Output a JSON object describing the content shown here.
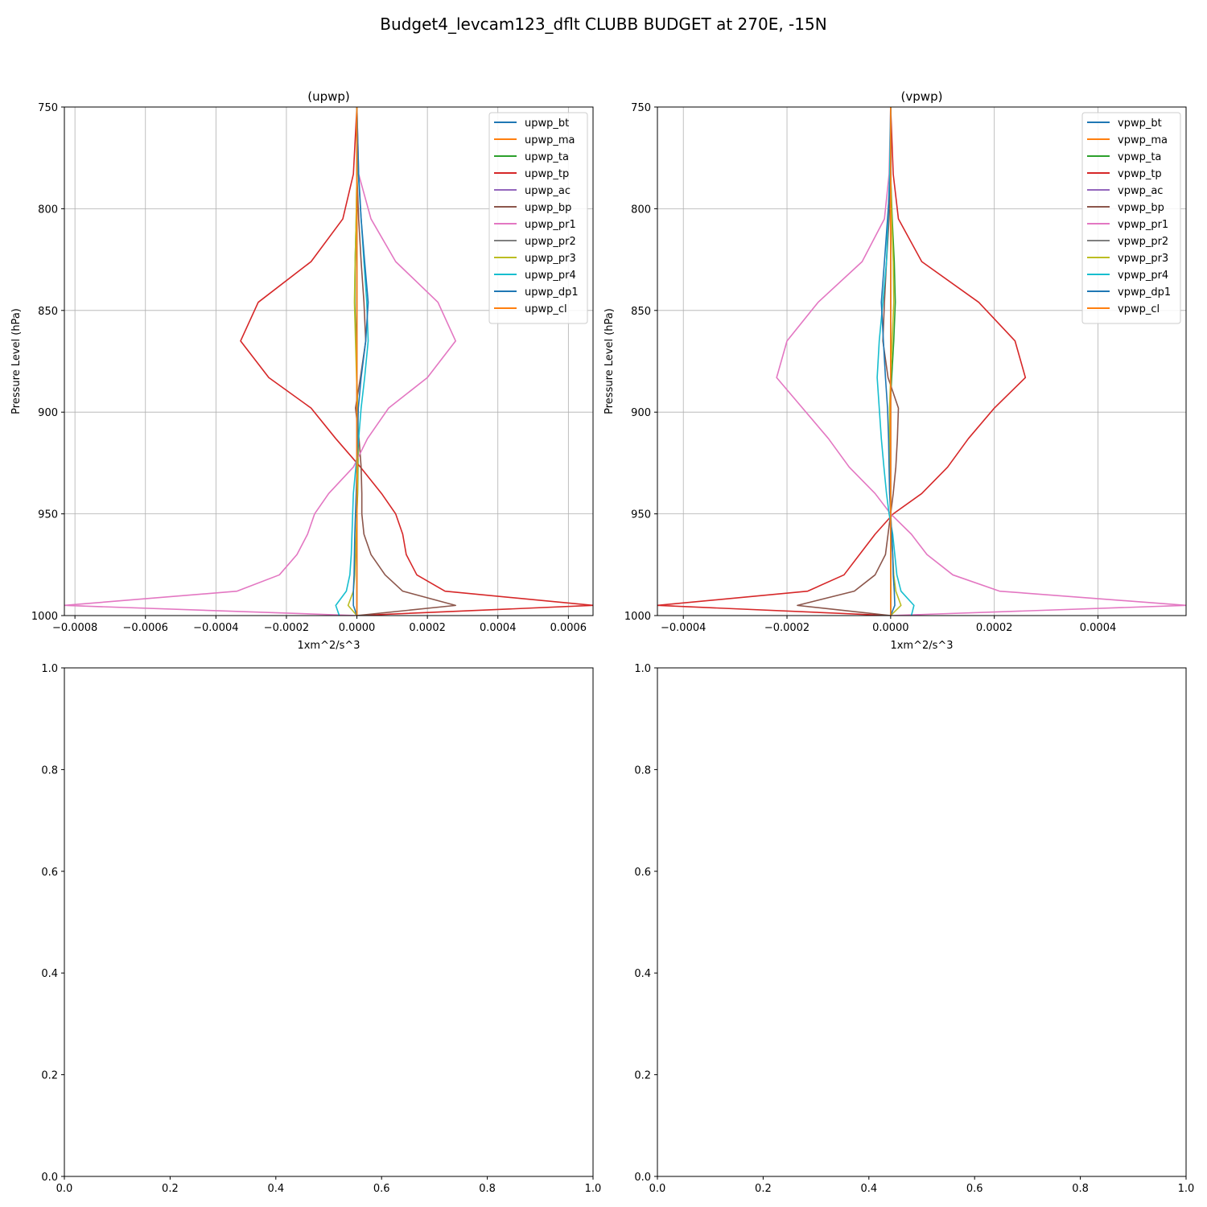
{
  "figure": {
    "suptitle": "Budget4_levcam123_dflt CLUBB BUDGET at 270E, -15N"
  },
  "chart_data": [
    {
      "type": "line",
      "title": "(upwp)",
      "xlabel": "1xm^2/s^3",
      "ylabel": "Pressure Level (hPa)",
      "xlim": [
        -0.00083,
        0.00067
      ],
      "ylim": [
        1000,
        750
      ],
      "y_inverted": true,
      "xticks": [
        -0.0008,
        -0.0006,
        -0.0004,
        -0.0002,
        0.0,
        0.0002,
        0.0004,
        0.0006
      ],
      "xtick_labels": [
        "−0.0008",
        "−0.0006",
        "−0.0004",
        "−0.0002",
        "0.0000",
        "0.0002",
        "0.0004",
        "0.0006"
      ],
      "yticks": [
        750,
        800,
        850,
        900,
        950,
        1000
      ],
      "ytick_labels": [
        "750",
        "800",
        "850",
        "900",
        "950",
        "1000"
      ],
      "grid": true,
      "legend_position": "upper right",
      "levels": [
        750,
        783,
        805,
        826,
        846,
        865,
        883,
        898,
        913,
        927,
        940,
        950,
        960,
        970,
        980,
        988,
        995,
        1000
      ],
      "series": [
        {
          "name": "upwp_bt",
          "color": "#1f77b4",
          "x": [
            0.0,
            0.0,
            0.0,
            0.0,
            0.0,
            0.0,
            0.0,
            0.0,
            0.0,
            0.0,
            0.0,
            0.0,
            0.0,
            0.0,
            0.0,
            0.0,
            0.0,
            0.0
          ]
        },
        {
          "name": "upwp_ma",
          "color": "#ff7f0e",
          "x": [
            0.0,
            0.0,
            0.0,
            0.0,
            0.0,
            0.0,
            0.0,
            0.0,
            0.0,
            0.0,
            0.0,
            0.0,
            0.0,
            0.0,
            0.0,
            0.0,
            0.0,
            0.0
          ]
        },
        {
          "name": "upwp_ta",
          "color": "#2ca02c",
          "x": [
            0.0,
            0.0,
            -2e-06,
            -5e-06,
            -6e-06,
            -3e-06,
            0.0,
            2e-06,
            4e-06,
            3e-06,
            2e-06,
            0.0,
            0.0,
            0.0,
            0.0,
            0.0,
            0.0,
            0.0
          ]
        },
        {
          "name": "upwp_tp",
          "color": "#d62728",
          "x": [
            0.0,
            -1e-05,
            -4e-05,
            -0.00013,
            -0.00028,
            -0.00033,
            -0.00025,
            -0.00013,
            -6e-05,
            1e-05,
            7e-05,
            0.00011,
            0.00013,
            0.00014,
            0.00017,
            0.00025,
            0.00067,
            0.0
          ]
        },
        {
          "name": "upwp_ac",
          "color": "#9467bd",
          "x": [
            0.0,
            0.0,
            0.0,
            0.0,
            0.0,
            0.0,
            0.0,
            0.0,
            0.0,
            0.0,
            0.0,
            0.0,
            0.0,
            0.0,
            0.0,
            0.0,
            0.0,
            0.0
          ]
        },
        {
          "name": "upwp_bp",
          "color": "#8c564b",
          "x": [
            0.0,
            0.0,
            5e-06,
            1.2e-05,
            2e-05,
            2.5e-05,
            1e-05,
            -4e-06,
            6e-06,
            1.2e-05,
            1.4e-05,
            1.4e-05,
            2e-05,
            4e-05,
            8e-05,
            0.00013,
            0.00028,
            0.0
          ]
        },
        {
          "name": "upwp_pr1",
          "color": "#e377c2",
          "x": [
            0.0,
            5e-06,
            4e-05,
            0.00011,
            0.00023,
            0.00028,
            0.0002,
            9e-05,
            3e-05,
            -1e-05,
            -8e-05,
            -0.00012,
            -0.00014,
            -0.00017,
            -0.00022,
            -0.00034,
            -0.00083,
            0.0
          ]
        },
        {
          "name": "upwp_pr2",
          "color": "#7f7f7f",
          "x": [
            0.0,
            0.0,
            0.0,
            0.0,
            0.0,
            0.0,
            0.0,
            0.0,
            0.0,
            0.0,
            0.0,
            0.0,
            0.0,
            0.0,
            0.0,
            0.0,
            0.0,
            0.0
          ]
        },
        {
          "name": "upwp_pr3",
          "color": "#bcbd22",
          "x": [
            0.0,
            0.0,
            -2e-06,
            -5e-06,
            -7e-06,
            -4e-06,
            -1e-06,
            2e-06,
            3e-06,
            2e-06,
            1e-06,
            0.0,
            -2e-06,
            -4e-06,
            -6e-06,
            -1e-05,
            -2.5e-05,
            0.0
          ]
        },
        {
          "name": "upwp_pr4",
          "color": "#17becf",
          "x": [
            0.0,
            4e-06,
            1.2e-05,
            2e-05,
            2.8e-05,
            3.2e-05,
            2.2e-05,
            1.2e-05,
            5e-06,
            -3e-06,
            -1e-05,
            -1.2e-05,
            -1.4e-05,
            -1.6e-05,
            -2e-05,
            -3e-05,
            -6e-05,
            -5e-05
          ]
        },
        {
          "name": "upwp_dp1",
          "color": "#1f77b4",
          "x": [
            0.0,
            5e-06,
            1.2e-05,
            2.2e-05,
            3.2e-05,
            2.5e-05,
            1.2e-05,
            4e-06,
            2e-06,
            0.0,
            -2e-06,
            -4e-06,
            -6e-06,
            -7e-06,
            -8e-06,
            -1e-05,
            -1e-05,
            0.0
          ]
        },
        {
          "name": "upwp_cl",
          "color": "#ff7f0e",
          "x": [
            0.0,
            0.0,
            0.0,
            0.0,
            0.0,
            0.0,
            0.0,
            0.0,
            0.0,
            0.0,
            0.0,
            0.0,
            0.0,
            0.0,
            0.0,
            0.0,
            0.0,
            0.0
          ]
        }
      ]
    },
    {
      "type": "line",
      "title": "(vpwp)",
      "xlabel": "1xm^2/s^3",
      "ylabel": "Pressure Level (hPa)",
      "xlim": [
        -0.00045,
        0.00057
      ],
      "ylim": [
        1000,
        750
      ],
      "y_inverted": true,
      "xticks": [
        -0.0004,
        -0.0002,
        0.0,
        0.0002,
        0.0004
      ],
      "xtick_labels": [
        "−0.0004",
        "−0.0002",
        "0.0000",
        "0.0002",
        "0.0004"
      ],
      "yticks": [
        750,
        800,
        850,
        900,
        950,
        1000
      ],
      "ytick_labels": [
        "750",
        "800",
        "850",
        "900",
        "950",
        "1000"
      ],
      "grid": true,
      "legend_position": "upper right",
      "levels": [
        750,
        783,
        805,
        826,
        846,
        865,
        883,
        898,
        913,
        927,
        940,
        950,
        960,
        970,
        980,
        988,
        995,
        1000
      ],
      "series": [
        {
          "name": "vpwp_bt",
          "color": "#1f77b4",
          "x": [
            0.0,
            0.0,
            0.0,
            0.0,
            0.0,
            0.0,
            0.0,
            0.0,
            0.0,
            0.0,
            0.0,
            0.0,
            0.0,
            0.0,
            0.0,
            0.0,
            0.0,
            0.0
          ]
        },
        {
          "name": "vpwp_ma",
          "color": "#ff7f0e",
          "x": [
            0.0,
            0.0,
            0.0,
            0.0,
            0.0,
            0.0,
            0.0,
            0.0,
            0.0,
            0.0,
            0.0,
            0.0,
            0.0,
            0.0,
            0.0,
            0.0,
            0.0,
            0.0
          ]
        },
        {
          "name": "vpwp_ta",
          "color": "#2ca02c",
          "x": [
            0.0,
            0.0,
            3e-06,
            7e-06,
            9e-06,
            6e-06,
            2e-06,
            -1e-06,
            -2e-06,
            -2e-06,
            -1e-06,
            0.0,
            0.0,
            0.0,
            0.0,
            0.0,
            0.0,
            0.0
          ]
        },
        {
          "name": "vpwp_tp",
          "color": "#d62728",
          "x": [
            0.0,
            5e-06,
            1.5e-05,
            6e-05,
            0.00017,
            0.00024,
            0.00026,
            0.0002,
            0.00015,
            0.00011,
            6e-05,
            5e-06,
            -3e-05,
            -6e-05,
            -9e-05,
            -0.00016,
            -0.00045,
            0.0
          ]
        },
        {
          "name": "vpwp_ac",
          "color": "#9467bd",
          "x": [
            0.0,
            0.0,
            0.0,
            0.0,
            0.0,
            0.0,
            0.0,
            0.0,
            0.0,
            0.0,
            0.0,
            0.0,
            0.0,
            0.0,
            0.0,
            0.0,
            0.0,
            0.0
          ]
        },
        {
          "name": "vpwp_bp",
          "color": "#8c564b",
          "x": [
            0.0,
            0.0,
            -3e-06,
            -8e-06,
            -1.2e-05,
            -1.5e-05,
            -5e-06,
            1.5e-05,
            1.3e-05,
            1e-05,
            5e-06,
            0.0,
            -5e-06,
            -1e-05,
            -3e-05,
            -7e-05,
            -0.00018,
            0.0
          ]
        },
        {
          "name": "vpwp_pr1",
          "color": "#e377c2",
          "x": [
            0.0,
            -3e-06,
            -1.2e-05,
            -5.5e-05,
            -0.00014,
            -0.0002,
            -0.00022,
            -0.00017,
            -0.00012,
            -8e-05,
            -3e-05,
            0.0,
            4e-05,
            7e-05,
            0.00012,
            0.00021,
            0.00057,
            0.0
          ]
        },
        {
          "name": "vpwp_pr2",
          "color": "#7f7f7f",
          "x": [
            0.0,
            0.0,
            0.0,
            0.0,
            0.0,
            0.0,
            0.0,
            0.0,
            0.0,
            0.0,
            0.0,
            0.0,
            0.0,
            0.0,
            0.0,
            0.0,
            0.0,
            0.0
          ]
        },
        {
          "name": "vpwp_pr3",
          "color": "#bcbd22",
          "x": [
            0.0,
            0.0,
            2e-06,
            5e-06,
            6e-06,
            3e-06,
            0.0,
            -2e-06,
            -2e-06,
            -1e-06,
            0.0,
            0.0,
            2e-06,
            4e-06,
            6e-06,
            1e-05,
            2e-05,
            0.0
          ]
        },
        {
          "name": "vpwp_pr4",
          "color": "#17becf",
          "x": [
            0.0,
            -2e-06,
            -5e-06,
            -8e-06,
            -1.5e-05,
            -2.2e-05,
            -2.6e-05,
            -2.2e-05,
            -1.8e-05,
            -1.3e-05,
            -8e-06,
            -3e-06,
            4e-06,
            8e-06,
            1.2e-05,
            2e-05,
            4.5e-05,
            4e-05
          ]
        },
        {
          "name": "vpwp_dp1",
          "color": "#1f77b4",
          "x": [
            0.0,
            0.0,
            -6e-06,
            -1.2e-05,
            -1.8e-05,
            -1.4e-05,
            -1e-05,
            -6e-06,
            -4e-06,
            -3e-06,
            -2e-06,
            0.0,
            2e-06,
            4e-06,
            5e-06,
            7e-06,
            8e-06,
            0.0
          ]
        },
        {
          "name": "vpwp_cl",
          "color": "#ff7f0e",
          "x": [
            0.0,
            0.0,
            0.0,
            0.0,
            0.0,
            0.0,
            0.0,
            0.0,
            0.0,
            0.0,
            0.0,
            0.0,
            0.0,
            0.0,
            0.0,
            0.0,
            0.0,
            0.0
          ]
        }
      ]
    },
    {
      "type": "line",
      "title": "",
      "xlim": [
        0.0,
        1.0
      ],
      "ylim": [
        0.0,
        1.0
      ],
      "xticks": [
        0.0,
        0.2,
        0.4,
        0.6,
        0.8,
        1.0
      ],
      "xtick_labels": [
        "0.0",
        "0.2",
        "0.4",
        "0.6",
        "0.8",
        "1.0"
      ],
      "yticks": [
        0.0,
        0.2,
        0.4,
        0.6,
        0.8,
        1.0
      ],
      "ytick_labels": [
        "0.0",
        "0.2",
        "0.4",
        "0.6",
        "0.8",
        "1.0"
      ],
      "grid": false,
      "series": []
    },
    {
      "type": "line",
      "title": "",
      "xlim": [
        0.0,
        1.0
      ],
      "ylim": [
        0.0,
        1.0
      ],
      "xticks": [
        0.0,
        0.2,
        0.4,
        0.6,
        0.8,
        1.0
      ],
      "xtick_labels": [
        "0.0",
        "0.2",
        "0.4",
        "0.6",
        "0.8",
        "1.0"
      ],
      "yticks": [
        0.0,
        0.2,
        0.4,
        0.6,
        0.8,
        1.0
      ],
      "ytick_labels": [
        "0.0",
        "0.2",
        "0.4",
        "0.6",
        "0.8",
        "1.0"
      ],
      "grid": false,
      "series": []
    }
  ]
}
